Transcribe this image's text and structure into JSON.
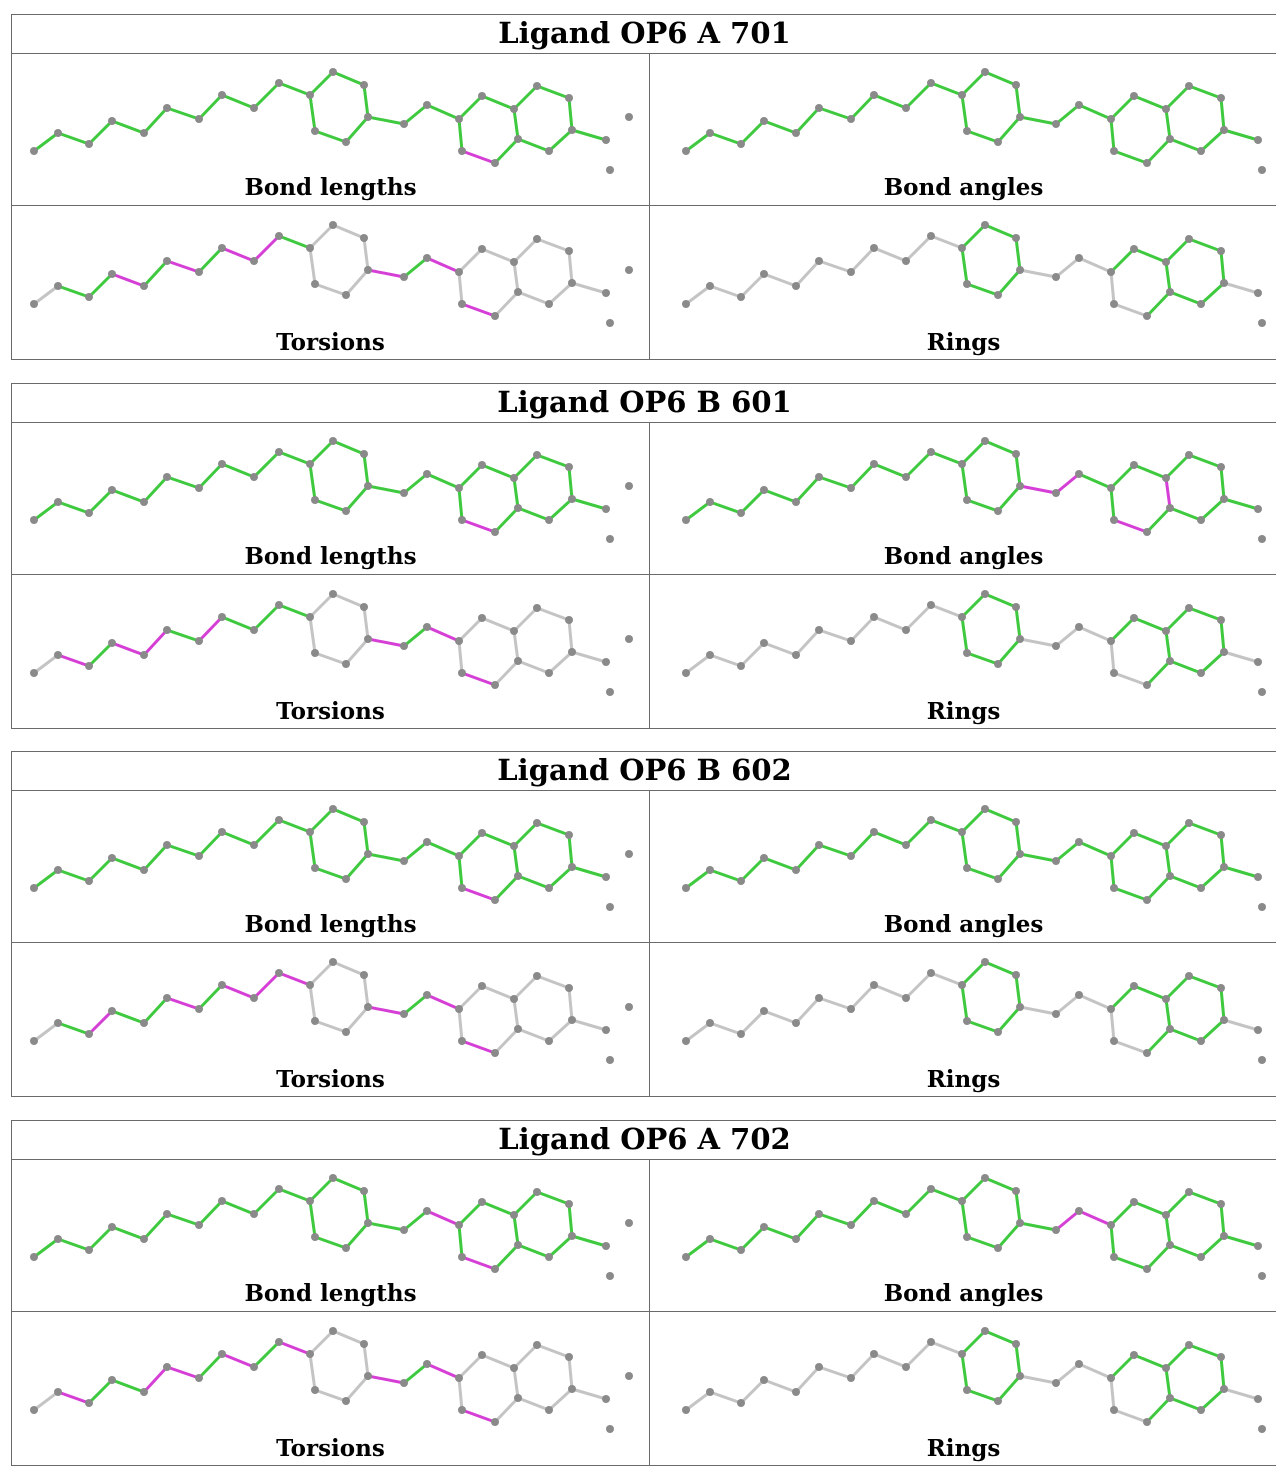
{
  "colors": {
    "green": "#3ec93e",
    "magenta": "#d63fd6",
    "grey": "#c4c4c4",
    "atom": "#8a8a8a"
  },
  "ligands": [
    {
      "title": "Ligand OP6 A 701",
      "panels": [
        {
          "caption": "Bond lengths",
          "highlights": [
            "green",
            "green",
            "green",
            "green",
            "green",
            "green",
            "green",
            "green",
            "green",
            "green",
            "green",
            "green",
            "green",
            "green",
            "green",
            "green",
            "green",
            "green",
            "green",
            "green",
            "green",
            "green",
            "green",
            "green",
            "green",
            "green",
            "green",
            "green",
            "magenta",
            "green",
            "green"
          ]
        },
        {
          "caption": "Bond angles",
          "highlights": [
            "green",
            "green",
            "green",
            "green",
            "green",
            "green",
            "green",
            "green",
            "green",
            "green",
            "green",
            "green",
            "green",
            "green",
            "green",
            "green",
            "green",
            "green",
            "green",
            "green",
            "green",
            "green",
            "green",
            "green",
            "green",
            "green",
            "green",
            "green",
            "green",
            "green",
            "green"
          ]
        },
        {
          "caption": "Torsions",
          "highlights": [
            "grey",
            "green",
            "green",
            "magenta",
            "green",
            "magenta",
            "green",
            "magenta",
            "magenta",
            "green",
            "grey",
            "grey",
            "grey",
            "grey",
            "grey",
            "grey",
            "magenta",
            "green",
            "magenta",
            "grey",
            "grey",
            "grey",
            "grey",
            "grey",
            "grey",
            "grey",
            "grey",
            "grey",
            "magenta",
            "grey",
            "grey"
          ]
        },
        {
          "caption": "Rings",
          "highlights": [
            "grey",
            "grey",
            "grey",
            "grey",
            "grey",
            "grey",
            "grey",
            "grey",
            "grey",
            "grey",
            "green",
            "green",
            "green",
            "green",
            "green",
            "green",
            "grey",
            "grey",
            "grey",
            "green",
            "green",
            "green",
            "green",
            "green",
            "green",
            "green",
            "green",
            "green",
            "grey",
            "grey",
            "grey"
          ]
        }
      ]
    },
    {
      "title": "Ligand OP6 B 601",
      "panels": [
        {
          "caption": "Bond lengths",
          "highlights": [
            "green",
            "green",
            "green",
            "green",
            "green",
            "green",
            "green",
            "green",
            "green",
            "green",
            "green",
            "green",
            "green",
            "green",
            "green",
            "green",
            "green",
            "green",
            "green",
            "green",
            "green",
            "green",
            "green",
            "green",
            "green",
            "green",
            "green",
            "green",
            "magenta",
            "green",
            "green"
          ]
        },
        {
          "caption": "Bond angles",
          "highlights": [
            "green",
            "green",
            "green",
            "green",
            "green",
            "green",
            "green",
            "green",
            "green",
            "green",
            "green",
            "green",
            "green",
            "green",
            "green",
            "green",
            "magenta",
            "magenta",
            "green",
            "green",
            "green",
            "green",
            "green",
            "green",
            "green",
            "green",
            "magenta",
            "green",
            "magenta",
            "green",
            "green"
          ]
        },
        {
          "caption": "Torsions",
          "highlights": [
            "grey",
            "magenta",
            "green",
            "magenta",
            "magenta",
            "green",
            "magenta",
            "green",
            "green",
            "green",
            "grey",
            "grey",
            "grey",
            "grey",
            "grey",
            "grey",
            "magenta",
            "green",
            "magenta",
            "grey",
            "grey",
            "grey",
            "grey",
            "grey",
            "grey",
            "grey",
            "grey",
            "grey",
            "magenta",
            "grey",
            "grey"
          ]
        },
        {
          "caption": "Rings",
          "highlights": [
            "grey",
            "grey",
            "grey",
            "grey",
            "grey",
            "grey",
            "grey",
            "grey",
            "grey",
            "grey",
            "green",
            "green",
            "green",
            "green",
            "green",
            "green",
            "grey",
            "grey",
            "grey",
            "green",
            "green",
            "green",
            "green",
            "green",
            "green",
            "green",
            "green",
            "green",
            "grey",
            "grey",
            "grey"
          ]
        }
      ]
    },
    {
      "title": "Ligand OP6 B 602",
      "panels": [
        {
          "caption": "Bond lengths",
          "highlights": [
            "green",
            "green",
            "green",
            "green",
            "green",
            "green",
            "green",
            "green",
            "green",
            "green",
            "green",
            "green",
            "green",
            "green",
            "green",
            "green",
            "green",
            "green",
            "green",
            "green",
            "green",
            "green",
            "green",
            "green",
            "green",
            "green",
            "green",
            "green",
            "magenta",
            "green",
            "green"
          ]
        },
        {
          "caption": "Bond angles",
          "highlights": [
            "green",
            "green",
            "green",
            "green",
            "green",
            "green",
            "green",
            "green",
            "green",
            "green",
            "green",
            "green",
            "green",
            "green",
            "green",
            "green",
            "green",
            "green",
            "green",
            "green",
            "green",
            "green",
            "green",
            "green",
            "green",
            "green",
            "green",
            "green",
            "green",
            "green",
            "green"
          ]
        },
        {
          "caption": "Torsions",
          "highlights": [
            "grey",
            "green",
            "magenta",
            "green",
            "green",
            "magenta",
            "green",
            "magenta",
            "magenta",
            "magenta",
            "grey",
            "grey",
            "grey",
            "grey",
            "grey",
            "grey",
            "magenta",
            "green",
            "magenta",
            "grey",
            "grey",
            "grey",
            "grey",
            "grey",
            "grey",
            "grey",
            "grey",
            "grey",
            "magenta",
            "grey",
            "grey"
          ]
        },
        {
          "caption": "Rings",
          "highlights": [
            "grey",
            "grey",
            "grey",
            "grey",
            "grey",
            "grey",
            "grey",
            "grey",
            "grey",
            "grey",
            "green",
            "green",
            "green",
            "green",
            "green",
            "green",
            "grey",
            "grey",
            "grey",
            "green",
            "green",
            "green",
            "green",
            "green",
            "green",
            "green",
            "green",
            "green",
            "grey",
            "grey",
            "grey"
          ]
        }
      ]
    },
    {
      "title": "Ligand OP6 A 702",
      "panels": [
        {
          "caption": "Bond lengths",
          "highlights": [
            "green",
            "green",
            "green",
            "green",
            "green",
            "green",
            "green",
            "green",
            "green",
            "green",
            "green",
            "green",
            "green",
            "green",
            "green",
            "green",
            "green",
            "green",
            "magenta",
            "green",
            "green",
            "green",
            "green",
            "green",
            "green",
            "green",
            "green",
            "green",
            "magenta",
            "green",
            "green"
          ]
        },
        {
          "caption": "Bond angles",
          "highlights": [
            "green",
            "green",
            "green",
            "green",
            "green",
            "green",
            "green",
            "green",
            "green",
            "green",
            "green",
            "green",
            "green",
            "green",
            "green",
            "green",
            "green",
            "magenta",
            "magenta",
            "green",
            "green",
            "green",
            "green",
            "green",
            "green",
            "green",
            "green",
            "green",
            "green",
            "green",
            "green"
          ]
        },
        {
          "caption": "Torsions",
          "highlights": [
            "grey",
            "magenta",
            "green",
            "green",
            "magenta",
            "magenta",
            "green",
            "magenta",
            "green",
            "magenta",
            "grey",
            "grey",
            "grey",
            "grey",
            "grey",
            "grey",
            "magenta",
            "green",
            "magenta",
            "grey",
            "grey",
            "grey",
            "grey",
            "grey",
            "grey",
            "grey",
            "grey",
            "grey",
            "magenta",
            "grey",
            "grey"
          ]
        },
        {
          "caption": "Rings",
          "highlights": [
            "grey",
            "grey",
            "grey",
            "grey",
            "grey",
            "grey",
            "grey",
            "grey",
            "grey",
            "grey",
            "green",
            "green",
            "green",
            "green",
            "green",
            "green",
            "grey",
            "grey",
            "grey",
            "green",
            "green",
            "green",
            "green",
            "green",
            "green",
            "green",
            "green",
            "green",
            "grey",
            "grey",
            "grey"
          ]
        }
      ]
    }
  ]
}
